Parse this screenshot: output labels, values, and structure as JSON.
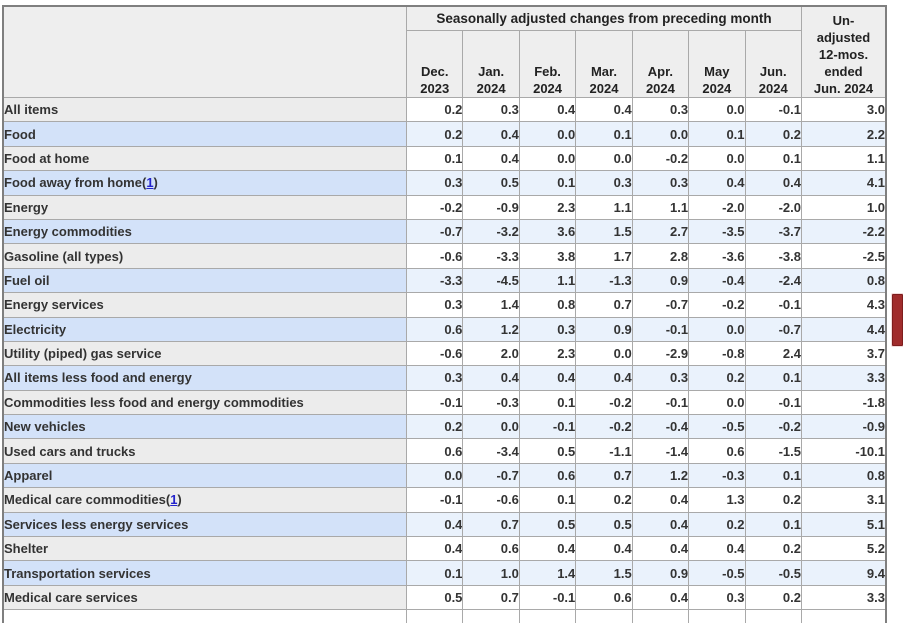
{
  "table": {
    "group_header": "Seasonally adjusted changes from preceding month",
    "unadjusted_header": "Un-\nadjusted\n12-mos.\nended\nJun. 2024",
    "month_headers": [
      "Dec.\n2023",
      "Jan.\n2024",
      "Feb.\n2024",
      "Mar.\n2024",
      "Apr.\n2024",
      "May\n2024",
      "Jun.\n2024"
    ],
    "rows": [
      {
        "label": "All items",
        "indent": 0,
        "footnote": null,
        "values": [
          "0.2",
          "0.3",
          "0.4",
          "0.4",
          "0.3",
          "0.0",
          "-0.1",
          "3.0"
        ]
      },
      {
        "label": "Food",
        "indent": 1,
        "footnote": null,
        "values": [
          "0.2",
          "0.4",
          "0.0",
          "0.1",
          "0.0",
          "0.1",
          "0.2",
          "2.2"
        ]
      },
      {
        "label": "Food at home",
        "indent": 2,
        "footnote": null,
        "values": [
          "0.1",
          "0.4",
          "0.0",
          "0.0",
          "-0.2",
          "0.0",
          "0.1",
          "1.1"
        ]
      },
      {
        "label": "Food away from home",
        "indent": 2,
        "footnote": "1",
        "values": [
          "0.3",
          "0.5",
          "0.1",
          "0.3",
          "0.3",
          "0.4",
          "0.4",
          "4.1"
        ]
      },
      {
        "label": "Energy",
        "indent": 1,
        "footnote": null,
        "values": [
          "-0.2",
          "-0.9",
          "2.3",
          "1.1",
          "1.1",
          "-2.0",
          "-2.0",
          "1.0"
        ]
      },
      {
        "label": "Energy commodities",
        "indent": 2,
        "footnote": null,
        "values": [
          "-0.7",
          "-3.2",
          "3.6",
          "1.5",
          "2.7",
          "-3.5",
          "-3.7",
          "-2.2"
        ]
      },
      {
        "label": "Gasoline (all types)",
        "indent": 3,
        "footnote": null,
        "values": [
          "-0.6",
          "-3.3",
          "3.8",
          "1.7",
          "2.8",
          "-3.6",
          "-3.8",
          "-2.5"
        ]
      },
      {
        "label": "Fuel oil",
        "indent": 3,
        "footnote": null,
        "values": [
          "-3.3",
          "-4.5",
          "1.1",
          "-1.3",
          "0.9",
          "-0.4",
          "-2.4",
          "0.8"
        ]
      },
      {
        "label": "Energy services",
        "indent": 2,
        "footnote": null,
        "values": [
          "0.3",
          "1.4",
          "0.8",
          "0.7",
          "-0.7",
          "-0.2",
          "-0.1",
          "4.3"
        ]
      },
      {
        "label": "Electricity",
        "indent": 3,
        "footnote": null,
        "values": [
          "0.6",
          "1.2",
          "0.3",
          "0.9",
          "-0.1",
          "0.0",
          "-0.7",
          "4.4"
        ]
      },
      {
        "label": "Utility (piped) gas service",
        "indent": 3,
        "footnote": null,
        "values": [
          "-0.6",
          "2.0",
          "2.3",
          "0.0",
          "-2.9",
          "-0.8",
          "2.4",
          "3.7"
        ]
      },
      {
        "label": "All items less food and energy",
        "indent": 0,
        "footnote": null,
        "values": [
          "0.3",
          "0.4",
          "0.4",
          "0.4",
          "0.3",
          "0.2",
          "0.1",
          "3.3"
        ]
      },
      {
        "label": "Commodities less food and energy commodities",
        "indent": 2,
        "footnote": null,
        "values": [
          "-0.1",
          "-0.3",
          "0.1",
          "-0.2",
          "-0.1",
          "0.0",
          "-0.1",
          "-1.8"
        ]
      },
      {
        "label": "New vehicles",
        "indent": 3,
        "footnote": null,
        "values": [
          "0.2",
          "0.0",
          "-0.1",
          "-0.2",
          "-0.4",
          "-0.5",
          "-0.2",
          "-0.9"
        ]
      },
      {
        "label": "Used cars and trucks",
        "indent": 3,
        "footnote": null,
        "values": [
          "0.6",
          "-3.4",
          "0.5",
          "-1.1",
          "-1.4",
          "0.6",
          "-1.5",
          "-10.1"
        ]
      },
      {
        "label": "Apparel",
        "indent": 3,
        "footnote": null,
        "values": [
          "0.0",
          "-0.7",
          "0.6",
          "0.7",
          "1.2",
          "-0.3",
          "0.1",
          "0.8"
        ]
      },
      {
        "label": "Medical care commodities",
        "indent": 3,
        "footnote": "1",
        "values": [
          "-0.1",
          "-0.6",
          "0.1",
          "0.2",
          "0.4",
          "1.3",
          "0.2",
          "3.1"
        ]
      },
      {
        "label": "Services less energy services",
        "indent": 2,
        "footnote": null,
        "values": [
          "0.4",
          "0.7",
          "0.5",
          "0.5",
          "0.4",
          "0.2",
          "0.1",
          "5.1"
        ]
      },
      {
        "label": "Shelter",
        "indent": 3,
        "footnote": null,
        "values": [
          "0.4",
          "0.6",
          "0.4",
          "0.4",
          "0.4",
          "0.4",
          "0.2",
          "5.2"
        ]
      },
      {
        "label": "Transportation services",
        "indent": 3,
        "footnote": null,
        "values": [
          "0.1",
          "1.0",
          "1.4",
          "1.5",
          "0.9",
          "-0.5",
          "-0.5",
          "9.4"
        ]
      },
      {
        "label": "Medical care services",
        "indent": 3,
        "footnote": null,
        "values": [
          "0.5",
          "0.7",
          "-0.1",
          "0.6",
          "0.4",
          "0.3",
          "0.2",
          "3.3"
        ]
      }
    ]
  },
  "colors": {
    "header_bg": "#eeeeee",
    "row_gray_label": "#ececec",
    "row_gray_data": "#ffffff",
    "row_blue_label": "#d3e2f9",
    "row_blue_data": "#eaf2fc",
    "border": "#a9a9a9",
    "footnote_link": "#2323cc",
    "scrollbar_thumb": "#a02c2c"
  }
}
